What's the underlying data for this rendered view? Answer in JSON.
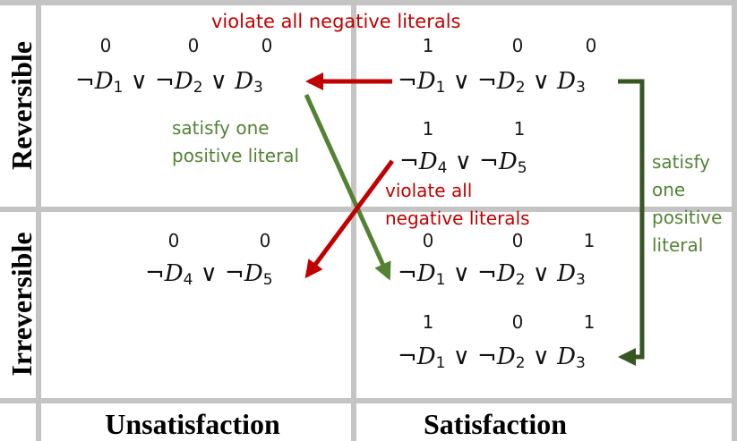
{
  "columns": {
    "left": "Unsatisfaction",
    "right": "Satisfaction"
  },
  "rows": {
    "top": "Reversible",
    "bottom": "Irreversible"
  },
  "colors": {
    "violate": "#c00000",
    "satisfy": "#548235",
    "satisfy_dark": "#375623",
    "grid": "#c4c4c4"
  },
  "cells": {
    "rev_unsat": {
      "bits": [
        "0",
        "0",
        "0"
      ]
    },
    "rev_sat_1": {
      "bits": [
        "1",
        "0",
        "0"
      ]
    },
    "rev_sat_2": {
      "bits": [
        "1",
        "1"
      ]
    },
    "irr_unsat": {
      "bits": [
        "0",
        "0"
      ]
    },
    "irr_sat_1": {
      "bits": [
        "0",
        "0",
        "1"
      ]
    },
    "irr_sat_2": {
      "bits": [
        "1",
        "0",
        "1"
      ]
    }
  },
  "annotations": {
    "violate_top": "violate all negative literals",
    "satisfy_mid": [
      "satisfy one",
      "positive literal"
    ],
    "violate_mid": [
      "violate all",
      "negative literals"
    ],
    "satisfy_right": [
      "satisfy",
      "one",
      "positive",
      "literal"
    ]
  }
}
